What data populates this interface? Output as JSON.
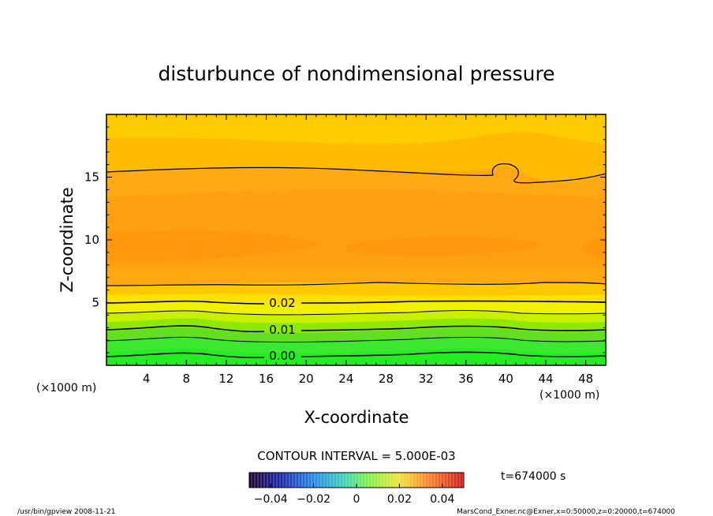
{
  "chart_data": {
    "type": "contour",
    "title": "disturbunce of nondimensional pressure",
    "xlabel": "X-coordinate",
    "ylabel": "Z-coordinate",
    "x_unit_left": "(×1000 m)",
    "x_unit_right": "(×1000 m)",
    "xlim": [
      0,
      50
    ],
    "ylim": [
      0,
      20
    ],
    "x_ticks": [
      4,
      8,
      12,
      16,
      20,
      24,
      28,
      32,
      36,
      40,
      44,
      48
    ],
    "x_tick_labels": [
      "4",
      "8",
      "12",
      "16",
      "20",
      "24",
      "28",
      "32",
      "36",
      "40",
      "44",
      "48"
    ],
    "y_ticks": [
      5,
      10,
      15
    ],
    "y_tick_labels": [
      "5",
      "10",
      "15"
    ],
    "contour_labels": [
      {
        "text": "0.02",
        "x": 17,
        "z": 4.9
      },
      {
        "text": "0.01",
        "x": 17,
        "z": 2.8
      },
      {
        "text": "0.00",
        "x": 17,
        "z": 0.7
      }
    ],
    "contour_interval_label": "CONTOUR INTERVAL = 5.000E-03",
    "time_label": "t=674000 s",
    "colorbar": {
      "min": -0.05,
      "max": 0.05,
      "ticks": [
        -0.04,
        -0.02,
        0,
        0.02,
        0.04
      ],
      "tick_labels": [
        "−0.04",
        "−0.02",
        "0",
        "0.02",
        "0.04"
      ]
    }
  },
  "footer": {
    "left": "/usr/bin/gpview   2008-11-21",
    "right": "MarsCond_Exner.nc@Exner,x=0:50000,z=0:20000,t=674000"
  },
  "colors": {
    "band_low": "#22ee22",
    "band_mid": "#ffd200",
    "band_high": "#ff8c0a",
    "top": "#ffcc00"
  }
}
